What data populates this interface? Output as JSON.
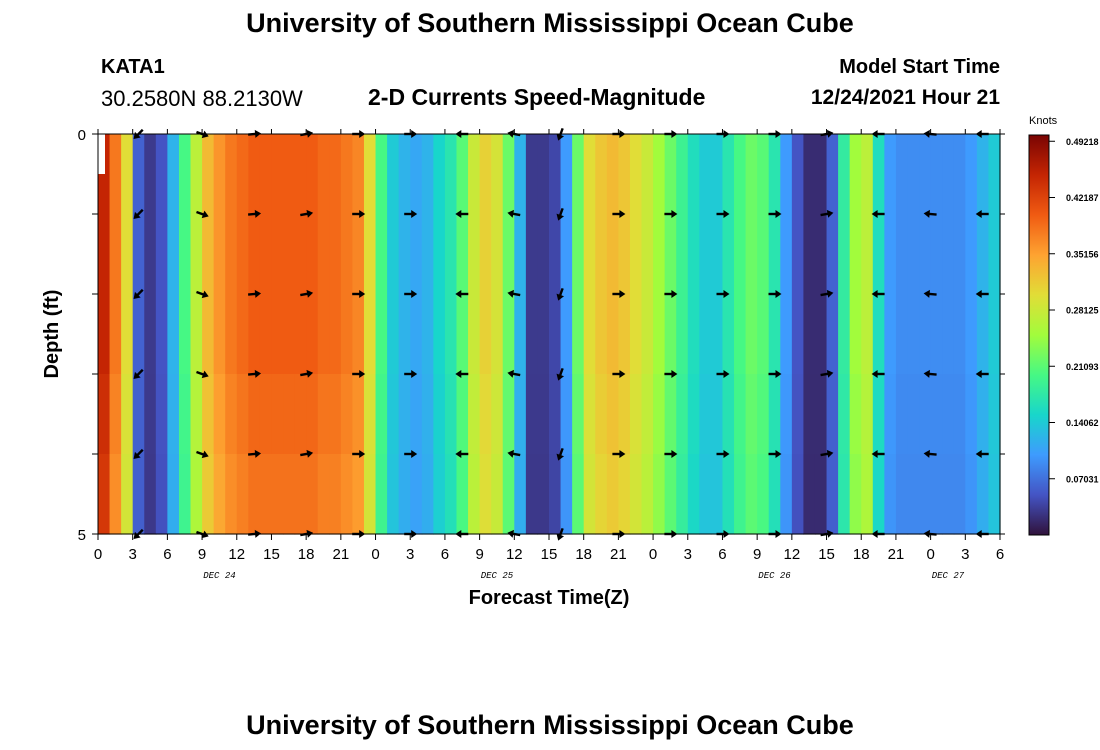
{
  "header": {
    "title": "University of Southern Mississippi Ocean Cube",
    "station": "KATA1",
    "coords": "30.2580N  88.2130W",
    "product": "2-D Currents Speed-Magnitude",
    "model_start_label": "Model Start Time",
    "model_start_value": "12/24/2021 Hour 21"
  },
  "footer": {
    "title": "University of Southern Mississippi Ocean Cube"
  },
  "colors": {
    "ramp": [
      "#30123b",
      "#4454c4",
      "#3e9bfe",
      "#18d6cb",
      "#46f884",
      "#a2fc3c",
      "#e1dd37",
      "#fea331",
      "#f05b12",
      "#c42503",
      "#7a0403"
    ]
  },
  "chart_data": {
    "type": "heatmap",
    "title": "2-D Currents Speed-Magnitude",
    "xlabel": "Forecast Time(Z)",
    "ylabel": "Depth (ft)",
    "y_ticks": [
      "0",
      "5"
    ],
    "ylim": [
      0,
      5
    ],
    "x_ticks": [
      "0",
      "3",
      "6",
      "9",
      "12",
      "15",
      "18",
      "21",
      "0",
      "3",
      "6",
      "9",
      "12",
      "15",
      "18",
      "21",
      "0",
      "3",
      "6",
      "9",
      "12",
      "15",
      "18",
      "21",
      "0",
      "3",
      "6"
    ],
    "day_labels": [
      {
        "label": "DEC 24",
        "hour": 10.5
      },
      {
        "label": "DEC 25",
        "hour": 34.5
      },
      {
        "label": "DEC 26",
        "hour": 58.5
      },
      {
        "label": "DEC 27",
        "hour": 73.5
      }
    ],
    "hours_span": [
      0,
      78
    ],
    "colorbar": {
      "label": "Knots",
      "min": 0,
      "max": 0.5,
      "ticks": [
        "0.49218",
        "0.42187",
        "0.35156",
        "0.28125",
        "0.21093",
        "0.14062",
        "0.07031"
      ]
    },
    "speed_profile": [
      [
        0,
        0.45
      ],
      [
        1,
        0.38
      ],
      [
        2,
        0.3
      ],
      [
        3,
        0.06
      ],
      [
        4,
        0.03
      ],
      [
        5,
        0.05
      ],
      [
        6,
        0.12
      ],
      [
        7,
        0.2
      ],
      [
        8,
        0.27
      ],
      [
        9,
        0.33
      ],
      [
        10,
        0.36
      ],
      [
        11,
        0.38
      ],
      [
        12,
        0.39
      ],
      [
        13,
        0.4
      ],
      [
        14,
        0.4
      ],
      [
        15,
        0.4
      ],
      [
        16,
        0.4
      ],
      [
        17,
        0.4
      ],
      [
        18,
        0.4
      ],
      [
        19,
        0.39
      ],
      [
        20,
        0.39
      ],
      [
        21,
        0.38
      ],
      [
        22,
        0.37
      ],
      [
        23,
        0.3
      ],
      [
        24,
        0.2
      ],
      [
        25,
        0.14
      ],
      [
        26,
        0.12
      ],
      [
        27,
        0.11
      ],
      [
        28,
        0.12
      ],
      [
        29,
        0.15
      ],
      [
        30,
        0.17
      ],
      [
        31,
        0.21
      ],
      [
        32,
        0.28
      ],
      [
        33,
        0.31
      ],
      [
        34,
        0.29
      ],
      [
        35,
        0.22
      ],
      [
        36,
        0.12
      ],
      [
        37,
        0.03
      ],
      [
        38,
        0.03
      ],
      [
        39,
        0.04
      ],
      [
        40,
        0.1
      ],
      [
        41,
        0.22
      ],
      [
        42,
        0.3
      ],
      [
        43,
        0.32
      ],
      [
        44,
        0.33
      ],
      [
        45,
        0.32
      ],
      [
        46,
        0.3
      ],
      [
        47,
        0.28
      ],
      [
        48,
        0.25
      ],
      [
        49,
        0.22
      ],
      [
        50,
        0.19
      ],
      [
        51,
        0.16
      ],
      [
        52,
        0.14
      ],
      [
        53,
        0.14
      ],
      [
        54,
        0.17
      ],
      [
        55,
        0.2
      ],
      [
        56,
        0.22
      ],
      [
        57,
        0.21
      ],
      [
        58,
        0.17
      ],
      [
        59,
        0.1
      ],
      [
        60,
        0.05
      ],
      [
        61,
        0.02
      ],
      [
        62,
        0.02
      ],
      [
        63,
        0.06
      ],
      [
        64,
        0.18
      ],
      [
        65,
        0.25
      ],
      [
        66,
        0.27
      ],
      [
        67,
        0.16
      ],
      [
        68,
        0.1
      ],
      [
        69,
        0.09
      ],
      [
        70,
        0.09
      ],
      [
        71,
        0.09
      ],
      [
        72,
        0.09
      ],
      [
        73,
        0.09
      ],
      [
        74,
        0.09
      ],
      [
        75,
        0.1
      ],
      [
        76,
        0.12
      ],
      [
        77,
        0.14
      ],
      [
        78,
        0.14
      ]
    ],
    "depth_factors": [
      1.0,
      1.0,
      1.0,
      0.98,
      0.96
    ],
    "vectors": [
      {
        "hour": 3.5,
        "angle": 135
      },
      {
        "hour": 9,
        "angle": 20
      },
      {
        "hour": 13.5,
        "angle": -5
      },
      {
        "hour": 18,
        "angle": -10
      },
      {
        "hour": 22.5,
        "angle": 0
      },
      {
        "hour": 27,
        "angle": 0
      },
      {
        "hour": 31.5,
        "angle": 180
      },
      {
        "hour": 36,
        "angle": 190
      },
      {
        "hour": 40,
        "angle": 110
      },
      {
        "hour": 45,
        "angle": 0
      },
      {
        "hour": 49.5,
        "angle": 0
      },
      {
        "hour": 54,
        "angle": 0
      },
      {
        "hour": 58.5,
        "angle": 0
      },
      {
        "hour": 63,
        "angle": -10
      },
      {
        "hour": 67.5,
        "angle": 180
      },
      {
        "hour": 72,
        "angle": 185
      },
      {
        "hour": 76.5,
        "angle": 180
      }
    ]
  }
}
